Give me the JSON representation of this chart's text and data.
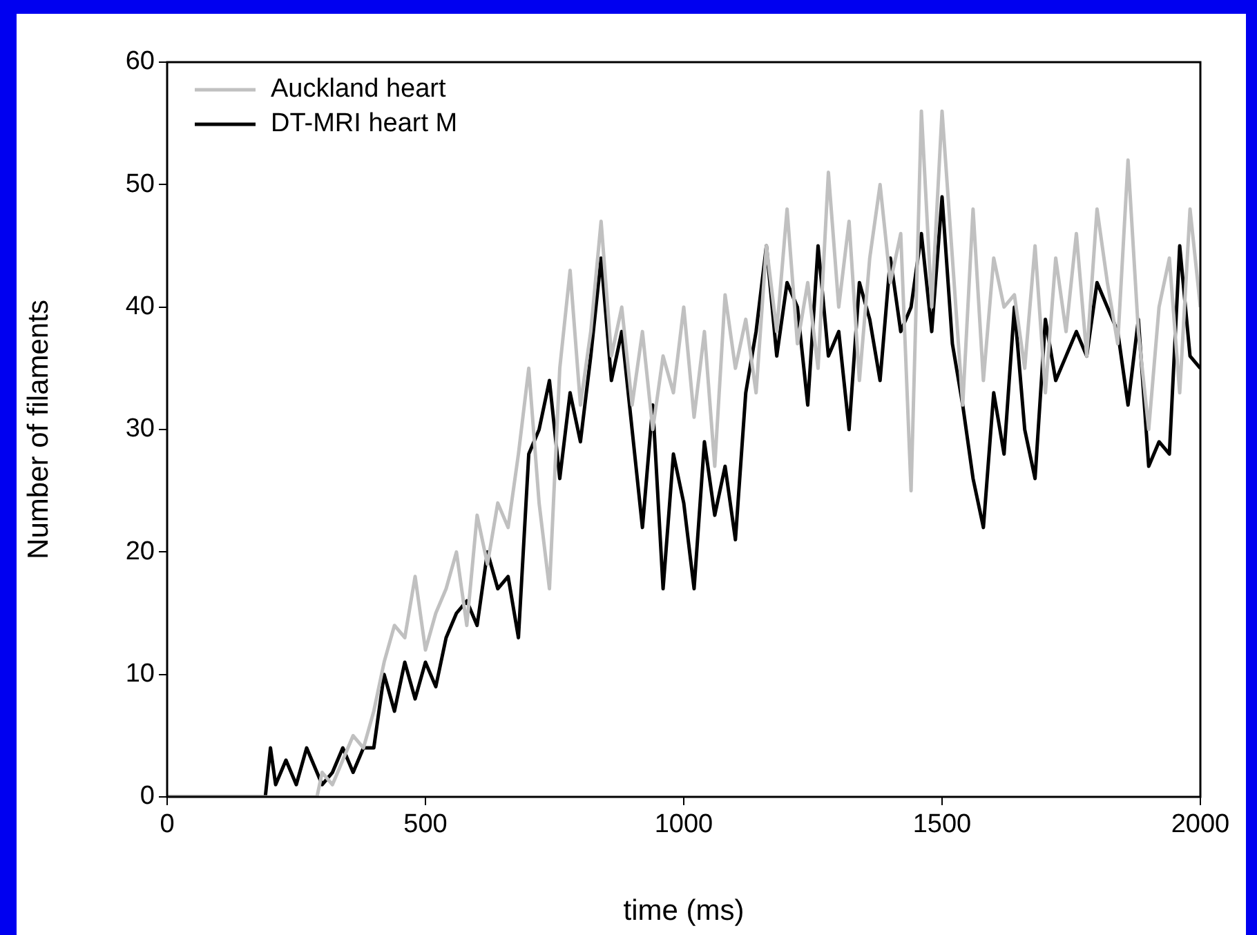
{
  "chart_data": {
    "type": "line",
    "xlabel": "time (ms)",
    "ylabel": "Number of filaments",
    "x": [
      0,
      20,
      40,
      60,
      80,
      100,
      120,
      140,
      160,
      180,
      190,
      200,
      210,
      230,
      250,
      270,
      290,
      300,
      320,
      340,
      360,
      380,
      400,
      420,
      440,
      460,
      480,
      500,
      520,
      540,
      560,
      580,
      600,
      620,
      640,
      660,
      680,
      700,
      720,
      740,
      760,
      780,
      800,
      820,
      840,
      860,
      880,
      900,
      920,
      940,
      960,
      980,
      1000,
      1020,
      1040,
      1060,
      1080,
      1100,
      1120,
      1140,
      1160,
      1180,
      1200,
      1220,
      1240,
      1260,
      1280,
      1300,
      1320,
      1340,
      1360,
      1380,
      1400,
      1420,
      1440,
      1460,
      1480,
      1500,
      1520,
      1540,
      1560,
      1580,
      1600,
      1620,
      1640,
      1660,
      1680,
      1700,
      1720,
      1740,
      1760,
      1780,
      1800,
      1820,
      1840,
      1860,
      1880,
      1900,
      1920,
      1940,
      1960,
      1980,
      2000
    ],
    "series": [
      {
        "name": "Auckland heart",
        "color": "#c0c0c0",
        "values": [
          0,
          0,
          0,
          0,
          0,
          0,
          0,
          0,
          0,
          0,
          0,
          0,
          0,
          0,
          0,
          0,
          0,
          2,
          1,
          3,
          5,
          4,
          7,
          11,
          14,
          13,
          18,
          12,
          15,
          17,
          20,
          14,
          23,
          19,
          24,
          22,
          28,
          35,
          24,
          17,
          35,
          43,
          32,
          38,
          47,
          36,
          40,
          32,
          38,
          30,
          36,
          33,
          40,
          31,
          38,
          27,
          41,
          35,
          39,
          33,
          45,
          38,
          48,
          37,
          42,
          35,
          51,
          40,
          47,
          34,
          44,
          50,
          42,
          46,
          25,
          56,
          40,
          56,
          44,
          32,
          48,
          34,
          44,
          40,
          41,
          35,
          45,
          33,
          44,
          38,
          46,
          36,
          48,
          42,
          37,
          52,
          38,
          30,
          40,
          44,
          33,
          48,
          40
        ]
      },
      {
        "name": "DT-MRI heart M",
        "color": "#000000",
        "values": [
          0,
          0,
          0,
          0,
          0,
          0,
          0,
          0,
          0,
          0,
          0,
          4,
          1,
          3,
          1,
          4,
          2,
          1,
          2,
          4,
          2,
          4,
          4,
          10,
          7,
          11,
          8,
          11,
          9,
          13,
          15,
          16,
          14,
          20,
          17,
          18,
          13,
          28,
          30,
          34,
          26,
          33,
          29,
          36,
          44,
          34,
          38,
          30,
          22,
          32,
          17,
          28,
          24,
          17,
          29,
          23,
          27,
          21,
          33,
          38,
          45,
          36,
          42,
          40,
          32,
          45,
          36,
          38,
          30,
          42,
          39,
          34,
          44,
          38,
          40,
          46,
          38,
          49,
          37,
          32,
          26,
          22,
          33,
          28,
          40,
          30,
          26,
          39,
          34,
          36,
          38,
          36,
          42,
          40,
          38,
          32,
          39,
          27,
          29,
          28,
          45,
          36,
          35
        ]
      }
    ],
    "xlim": [
      0,
      2000
    ],
    "xticks": [
      0,
      500,
      1000,
      1500,
      2000
    ],
    "ylim": [
      0,
      60
    ],
    "yticks": [
      0,
      10,
      20,
      30,
      40,
      50,
      60
    ],
    "grid": false,
    "legend": "top left",
    "line_style": "solid",
    "marker": "none"
  }
}
